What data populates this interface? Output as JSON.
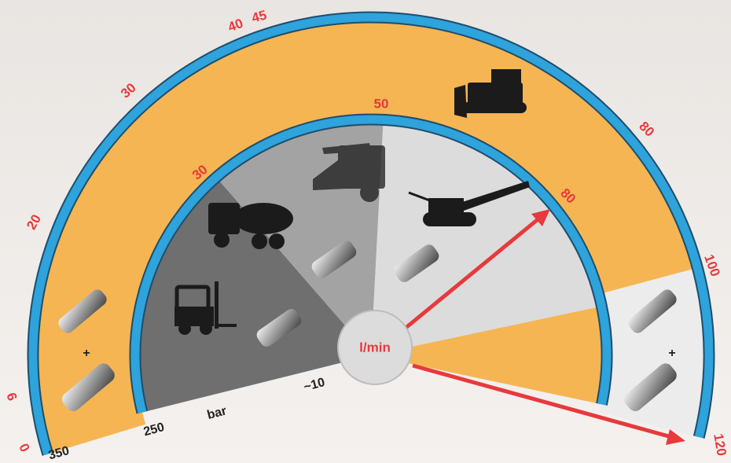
{
  "outer_scale": [
    "0",
    "6",
    "20",
    "30",
    "40",
    "45",
    "80",
    "100",
    "120"
  ],
  "inner_scale": [
    "30",
    "50",
    "80"
  ],
  "pressure_scale": [
    "350",
    "250",
    "bar",
    "~10"
  ],
  "center_label": "l/min",
  "plus_signs": [
    "+",
    "+"
  ]
}
